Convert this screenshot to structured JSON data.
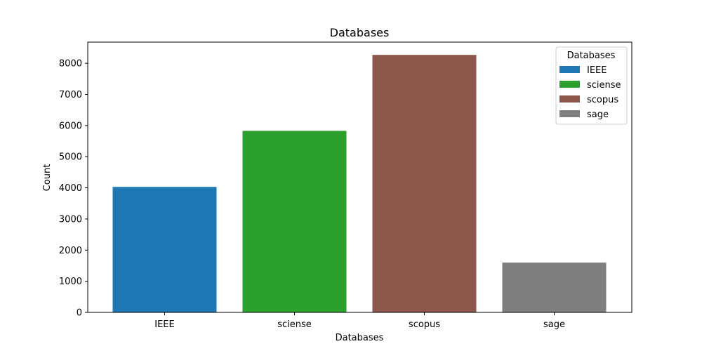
{
  "chart_data": {
    "type": "bar",
    "title": "Databases",
    "xlabel": "Databases",
    "ylabel": "Count",
    "categories": [
      "IEEE",
      "sciense",
      "scopus",
      "sage"
    ],
    "values": [
      4030,
      5830,
      8270,
      1600
    ],
    "colors": [
      "#1f77b4",
      "#2ca02c",
      "#8c564b",
      "#7f7f7f"
    ],
    "ylim": [
      0,
      8680
    ],
    "yticks": [
      0,
      1000,
      2000,
      3000,
      4000,
      5000,
      6000,
      7000,
      8000
    ],
    "grid": false,
    "legend": {
      "title": "Databases",
      "placement": "top-right",
      "entries": [
        "IEEE",
        "sciense",
        "scopus",
        "sage"
      ]
    }
  }
}
